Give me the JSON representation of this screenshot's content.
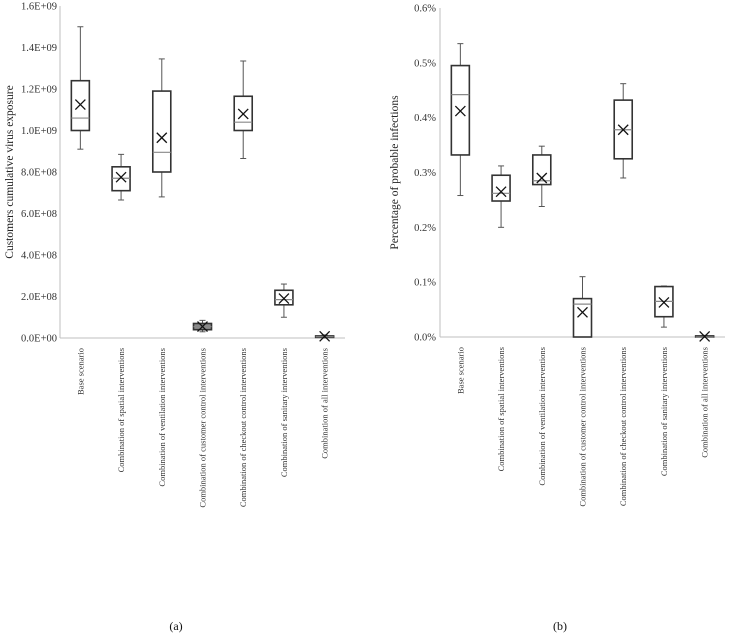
{
  "chart_data": [
    {
      "type": "box",
      "caption": "(a)",
      "ylabel": "Customers cumulative virus exposure",
      "ylim": [
        0,
        1600000000
      ],
      "yticks": [
        0,
        200000000,
        400000000,
        600000000,
        800000000,
        1000000000,
        1200000000,
        1400000000,
        1600000000
      ],
      "ytick_labels": [
        "0.0E+00",
        "2.0E+08",
        "4.0E+08",
        "6.0E+08",
        "8.0E+08",
        "1.0E+09",
        "1.2E+09",
        "1.4E+09",
        "1.6E+09"
      ],
      "categories": [
        "Base scenario",
        "Combination of spatial interventions",
        "Combination of ventilation interventions",
        "Combination of customer control interventions",
        "Combination of checkout control interventions",
        "Combination of sanitary interventions",
        "Combination of all interventions"
      ],
      "boxes": [
        {
          "min": 910000000,
          "q1": 1000000000,
          "median": 1060000000,
          "q3": 1240000000,
          "max": 1500000000,
          "mean": 1125000000
        },
        {
          "min": 665000000,
          "q1": 710000000,
          "median": 770000000,
          "q3": 825000000,
          "max": 885000000,
          "mean": 775000000
        },
        {
          "min": 680000000,
          "q1": 800000000,
          "median": 895000000,
          "q3": 1190000000,
          "max": 1345000000,
          "mean": 965000000
        },
        {
          "min": 30000000,
          "q1": 40000000,
          "median": 55000000,
          "q3": 70000000,
          "max": 85000000,
          "mean": 55000000
        },
        {
          "min": 865000000,
          "q1": 1000000000,
          "median": 1040000000,
          "q3": 1165000000,
          "max": 1335000000,
          "mean": 1080000000
        },
        {
          "min": 100000000,
          "q1": 160000000,
          "median": 185000000,
          "q3": 230000000,
          "max": 260000000,
          "mean": 190000000
        },
        {
          "min": 0,
          "q1": 3000000,
          "median": 6000000,
          "q3": 10000000,
          "max": 15000000,
          "mean": 8000000
        }
      ],
      "colors": {
        "box": "#333333",
        "box_fill": "#ffffff",
        "filled_box": "#888888",
        "median": "#888888"
      }
    },
    {
      "type": "box",
      "caption": "(b)",
      "ylabel": "Percentage of probable infections",
      "ylim": [
        0,
        0.006
      ],
      "yticks": [
        0,
        0.001,
        0.002,
        0.003,
        0.004,
        0.005,
        0.006
      ],
      "ytick_labels": [
        "0.0%",
        "0.1%",
        "0.2%",
        "0.3%",
        "0.4%",
        "0.5%",
        "0.6%"
      ],
      "categories": [
        "Base scenario",
        "Combination of spatial interventions",
        "Combination of ventilation interventions",
        "Combination of customer control interventions",
        "Combination of checkout control interventions",
        "Combination of sanitary interventions",
        "Combination of all interventions"
      ],
      "boxes": [
        {
          "min": 0.00258,
          "q1": 0.00332,
          "median": 0.00442,
          "q3": 0.00495,
          "max": 0.00535,
          "mean": 0.00412
        },
        {
          "min": 0.002,
          "q1": 0.00248,
          "median": 0.00262,
          "q3": 0.00295,
          "max": 0.00312,
          "mean": 0.00265
        },
        {
          "min": 0.00238,
          "q1": 0.00278,
          "median": 0.00285,
          "q3": 0.00332,
          "max": 0.00348,
          "mean": 0.0029
        },
        {
          "min": 0.0,
          "q1": 0.0,
          "median": 0.0006,
          "q3": 0.0007,
          "max": 0.0011,
          "mean": 0.00045
        },
        {
          "min": 0.0029,
          "q1": 0.00325,
          "median": 0.00378,
          "q3": 0.00432,
          "max": 0.00462,
          "mean": 0.00378
        },
        {
          "min": 0.00018,
          "q1": 0.00037,
          "median": 0.00065,
          "q3": 0.00092,
          "max": 0.00093,
          "mean": 0.00063
        },
        {
          "min": 0.0,
          "q1": 0.0,
          "median": 0.0,
          "q3": 2e-05,
          "max": 3e-05,
          "mean": 1e-05
        }
      ],
      "colors": {
        "box": "#333333",
        "box_fill": "#ffffff",
        "median": "#888888"
      }
    }
  ]
}
